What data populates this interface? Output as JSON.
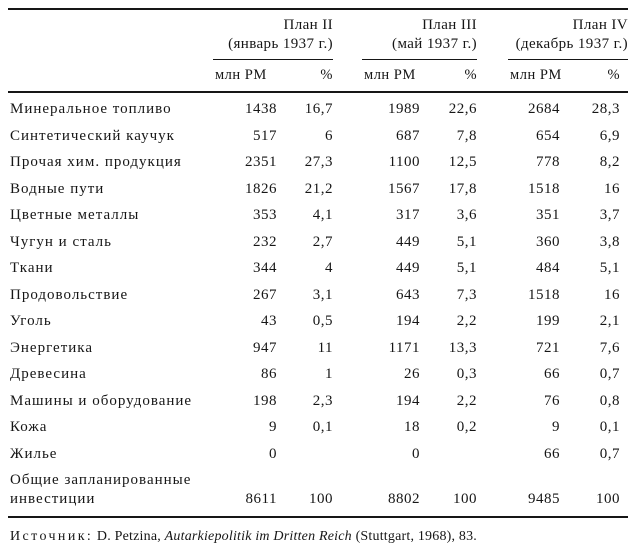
{
  "table": {
    "groups": [
      {
        "title": "План II",
        "subtitle": "(январь 1937 г.)"
      },
      {
        "title": "План III",
        "subtitle": "(май 1937 г.)"
      },
      {
        "title": "План IV",
        "subtitle": "(декабрь 1937 г.)"
      }
    ],
    "unit_label": "млн РМ",
    "percent_label": "%",
    "rows": [
      {
        "label": "Минеральное топливо",
        "values": [
          "1438",
          "16,7",
          "1989",
          "22,6",
          "2684",
          "28,3"
        ]
      },
      {
        "label": "Синтетический каучук",
        "values": [
          "517",
          "6",
          "687",
          "7,8",
          "654",
          "6,9"
        ]
      },
      {
        "label": "Прочая хим. продукция",
        "values": [
          "2351",
          "27,3",
          "1100",
          "12,5",
          "778",
          "8,2"
        ]
      },
      {
        "label": "Водные пути",
        "values": [
          "1826",
          "21,2",
          "1567",
          "17,8",
          "1518",
          "16"
        ]
      },
      {
        "label": "Цветные металлы",
        "values": [
          "353",
          "4,1",
          "317",
          "3,6",
          "351",
          "3,7"
        ]
      },
      {
        "label": "Чугун и сталь",
        "values": [
          "232",
          "2,7",
          "449",
          "5,1",
          "360",
          "3,8"
        ]
      },
      {
        "label": "Ткани",
        "values": [
          "344",
          "4",
          "449",
          "5,1",
          "484",
          "5,1"
        ]
      },
      {
        "label": "Продовольствие",
        "values": [
          "267",
          "3,1",
          "643",
          "7,3",
          "1518",
          "16"
        ]
      },
      {
        "label": "Уголь",
        "values": [
          "43",
          "0,5",
          "194",
          "2,2",
          "199",
          "2,1"
        ]
      },
      {
        "label": "Энергетика",
        "values": [
          "947",
          "11",
          "1171",
          "13,3",
          "721",
          "7,6"
        ]
      },
      {
        "label": "Древесина",
        "values": [
          "86",
          "1",
          "26",
          "0,3",
          "66",
          "0,7"
        ]
      },
      {
        "label": "Машины и оборудование",
        "values": [
          "198",
          "2,3",
          "194",
          "2,2",
          "76",
          "0,8"
        ]
      },
      {
        "label": "Кожа",
        "values": [
          "9",
          "0,1",
          "18",
          "0,2",
          "9",
          "0,1"
        ]
      },
      {
        "label": "Жилье",
        "values": [
          "0",
          "",
          "0",
          "",
          "66",
          "0,7"
        ]
      },
      {
        "label": "Общие запланированные инвестиции",
        "values": [
          "8611",
          "100",
          "8802",
          "100",
          "9485",
          "100"
        ]
      }
    ]
  },
  "source": {
    "label": "Источник:",
    "author": "D. Petzina,",
    "title": "Autarkiepolitik im Dritten Reich",
    "rest": "(Stuttgart, 1968), 83."
  }
}
